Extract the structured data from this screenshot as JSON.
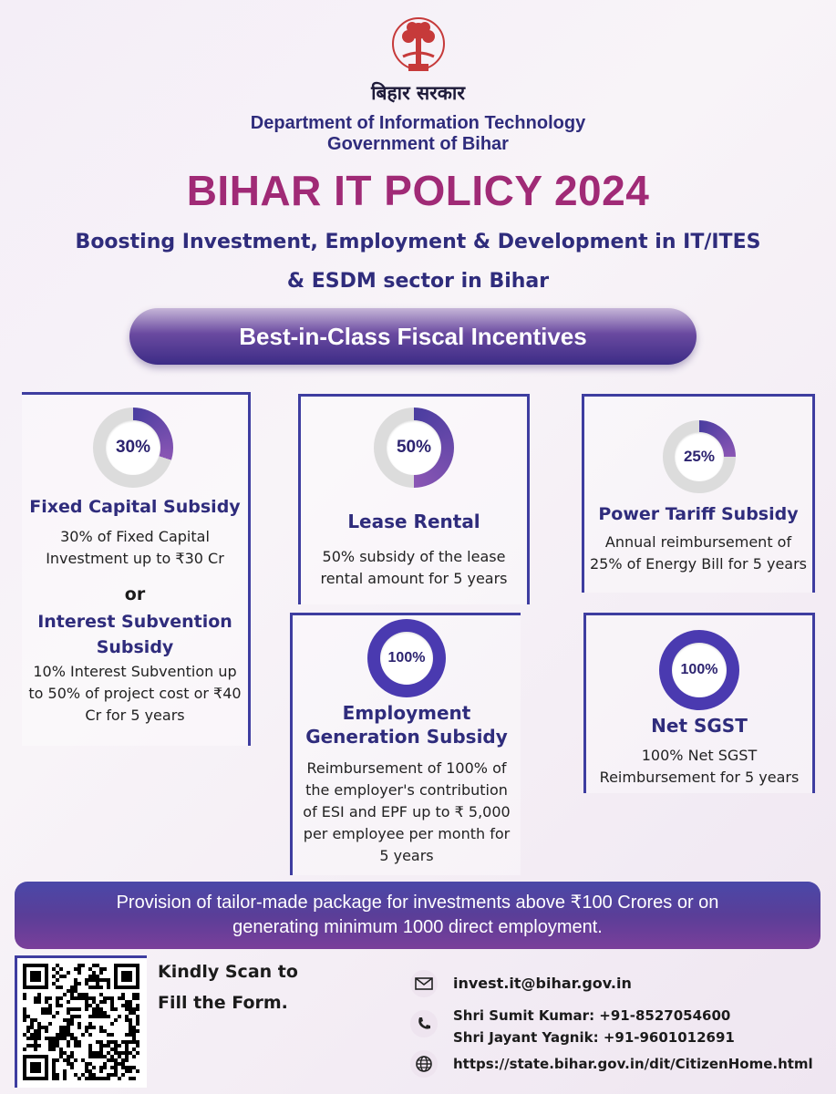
{
  "header": {
    "hindi_title": "बिहार सरकार",
    "department_line1": "Department of Information Technology",
    "department_line2": "Government of Bihar",
    "policy_title": "BIHAR IT POLICY 2024",
    "subtitle_line1": "Boosting Investment, Employment & Development in IT/ITES",
    "subtitle_line2": "& ESDM sector in Bihar"
  },
  "banner": {
    "label": "Best-in-Class Fiscal Incentives"
  },
  "cards": {
    "fixed_capital": {
      "percent": "30%",
      "value": 30,
      "title": "Fixed Capital Subsidy",
      "desc_line1": "30% of Fixed Capital",
      "desc_line2": "Investment up to ₹30 Cr",
      "or": "or",
      "alt_title_line1": "Interest Subvention",
      "alt_title_line2": "Subsidy",
      "alt_desc_line1": "10% Interest Subvention up",
      "alt_desc_line2": "to 50% of project cost or ₹40",
      "alt_desc_line3": "Cr for 5 years"
    },
    "lease_rental": {
      "percent": "50%",
      "value": 50,
      "title": "Lease Rental",
      "desc_line1": "50% subsidy of the lease",
      "desc_line2": "rental amount for 5 years"
    },
    "power_tariff": {
      "percent": "25%",
      "value": 25,
      "title": "Power Tariff Subsidy",
      "desc_line1": "Annual reimbursement of",
      "desc_line2": "25% of Energy Bill for 5 years"
    },
    "employment": {
      "percent": "100%",
      "value": 100,
      "title_line1": "Employment",
      "title_line2": "Generation Subsidy",
      "desc_line1": "Reimbursement of 100% of",
      "desc_line2": "the employer's contribution",
      "desc_line3": "of ESI and EPF up to ₹ 5,000",
      "desc_line4": "per employee per month for",
      "desc_line5": "5 years"
    },
    "net_sgst": {
      "percent": "100%",
      "value": 100,
      "title": "Net SGST",
      "desc_line1": "100% Net SGST",
      "desc_line2": "Reimbursement for 5 years"
    }
  },
  "bottom_banner": {
    "line1": "Provision of tailor-made package for investments above ₹100 Crores or on",
    "line2": "generating minimum 1000 direct employment."
  },
  "scan": {
    "line1": "Kindly Scan to",
    "line2": "Fill the Form."
  },
  "contact": {
    "email": "invest.it@bihar.gov.in",
    "phone1": "Shri Sumit Kumar: +91-8527054600",
    "phone2": "Shri Jayant Yagnik: +91-9601012691",
    "website": "https://state.bihar.gov.in/dit/CitizenHome.html"
  },
  "colors": {
    "ring_fill": "#4a3da0",
    "ring_fill_light": "#8a56b4",
    "ring_empty": "#dcdcdc",
    "ring_full": "#4a3ab0"
  }
}
